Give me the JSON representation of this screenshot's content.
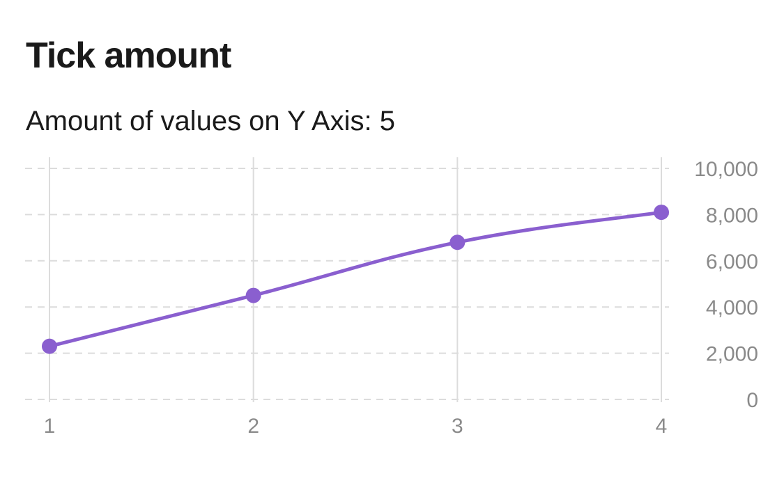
{
  "page": {
    "title": "Tick amount",
    "subtitle": "Amount of values on Y Axis: 5"
  },
  "chart_data": {
    "type": "line",
    "x": [
      1,
      2,
      3,
      4
    ],
    "series": [
      {
        "values": [
          2300,
          4500,
          6800,
          8100
        ]
      }
    ],
    "xticks": [
      "1",
      "2",
      "3",
      "4"
    ],
    "yticks": [
      0,
      2000,
      4000,
      6000,
      8000,
      10000
    ],
    "ytick_labels": [
      "0",
      "2,000",
      "4,000",
      "6,000",
      "8,000",
      "10,000"
    ],
    "xlim": [
      1,
      4
    ],
    "ylim": [
      0,
      10000
    ],
    "yaxis_position": "right",
    "grid": true,
    "curve": "smooth",
    "colors": {
      "line": "#8a5fcf",
      "grid_horizontal": "#dcdcdc",
      "grid_vertical": "#dcdcdc",
      "tick_label": "#8a8a8a"
    }
  }
}
